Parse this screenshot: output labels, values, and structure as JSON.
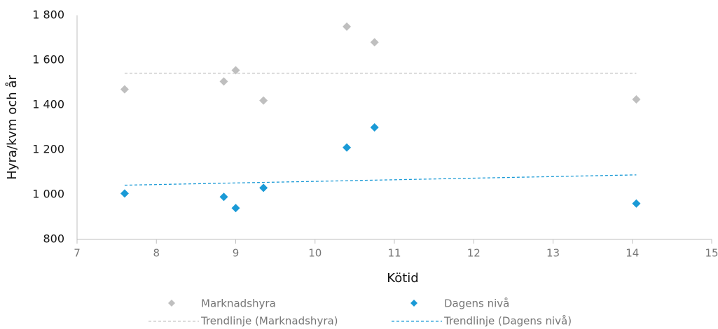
{
  "chart_data": {
    "type": "scatter",
    "x_label": "Kötid",
    "y_label": "Hyra/kvm och år",
    "xlim": [
      7,
      15
    ],
    "xticks": [
      7,
      8,
      9,
      10,
      11,
      12,
      13,
      14,
      15
    ],
    "ylim": [
      800,
      1800
    ],
    "yticks": [
      800,
      {
        "value": 1000,
        "label": "1 000"
      },
      {
        "value": 1200,
        "label": "1 200"
      },
      {
        "value": 1400,
        "label": "1 400"
      },
      {
        "value": 1600,
        "label": "1 600"
      },
      {
        "value": 1800,
        "label": "1 800"
      }
    ],
    "series": [
      {
        "name": "Marknadshyra",
        "color": "#bfbfbf",
        "x": [
          7.6,
          8.85,
          9.0,
          9.35,
          10.4,
          10.75,
          14.05
        ],
        "values": [
          1470,
          1505,
          1555,
          1420,
          1750,
          1680,
          1425
        ]
      },
      {
        "name": "Dagens nivå",
        "color": "#1a9ad6",
        "x": [
          7.6,
          8.85,
          9.0,
          9.35,
          10.4,
          10.75,
          14.05
        ],
        "values": [
          1005,
          990,
          940,
          1030,
          1210,
          1300,
          960
        ]
      }
    ],
    "trendlines": [
      {
        "name": "Trendlinje (Marknadshyra)",
        "color": "#c8c8c8",
        "x": [
          7.6,
          14.05
        ],
        "values": [
          1542,
          1542
        ]
      },
      {
        "name": "Trendlinje (Dagens nivå)",
        "color": "#1a9ad6",
        "x": [
          7.6,
          14.05
        ],
        "values": [
          1042,
          1088
        ]
      }
    ]
  }
}
